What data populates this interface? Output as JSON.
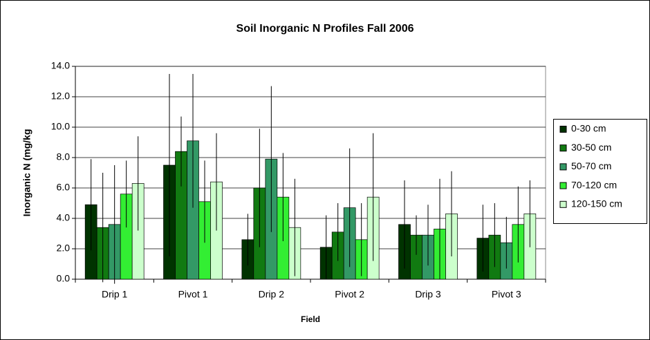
{
  "chart_data": {
    "type": "bar",
    "title": "Soil Inorganic N Profiles Fall 2006",
    "x_label": "Field",
    "y_label": "Inorganic N (mg/kg",
    "categories": [
      "Drip 1",
      "Pivot 1",
      "Drip 2",
      "Pivot 2",
      "Drip 3",
      "Pivot 3"
    ],
    "series": [
      {
        "name": "0-30 cm",
        "color": "#003300",
        "values": [
          4.9,
          7.5,
          2.6,
          2.1,
          3.6,
          2.7
        ],
        "errors": [
          3.0,
          6.0,
          1.7,
          2.1,
          2.9,
          2.2
        ]
      },
      {
        "name": "30-50 cm",
        "color": "#117a11",
        "values": [
          3.4,
          8.4,
          6.0,
          3.1,
          2.9,
          2.9
        ],
        "errors": [
          3.6,
          2.3,
          3.9,
          1.9,
          1.3,
          2.1
        ]
      },
      {
        "name": "50-70 cm",
        "color": "#339966",
        "values": [
          3.6,
          9.1,
          7.9,
          4.7,
          2.9,
          2.4
        ],
        "errors": [
          3.9,
          4.4,
          4.8,
          3.9,
          2.0,
          1.7
        ]
      },
      {
        "name": "70-120 cm",
        "color": "#33ee33",
        "values": [
          5.6,
          5.1,
          5.4,
          2.6,
          3.3,
          3.6
        ],
        "errors": [
          2.2,
          2.7,
          2.9,
          2.4,
          3.3,
          2.5
        ]
      },
      {
        "name": "120-150 cm",
        "color": "#ccffcc",
        "values": [
          6.3,
          6.4,
          3.4,
          5.4,
          4.3,
          4.3
        ],
        "errors": [
          3.1,
          3.2,
          3.2,
          4.2,
          2.8,
          2.2
        ]
      }
    ],
    "ylim": [
      0,
      14
    ],
    "yticks": [
      {
        "value": 0,
        "label": "0.0"
      },
      {
        "value": 2,
        "label": "2.0"
      },
      {
        "value": 4,
        "label": "4.0"
      },
      {
        "value": 6,
        "label": "6.0"
      },
      {
        "value": 8,
        "label": "8.0"
      },
      {
        "value": 10,
        "label": "10.0"
      },
      {
        "value": 12,
        "label": "12.0"
      },
      {
        "value": 14,
        "label": "14.0"
      }
    ],
    "grid": true,
    "legend": "right"
  }
}
